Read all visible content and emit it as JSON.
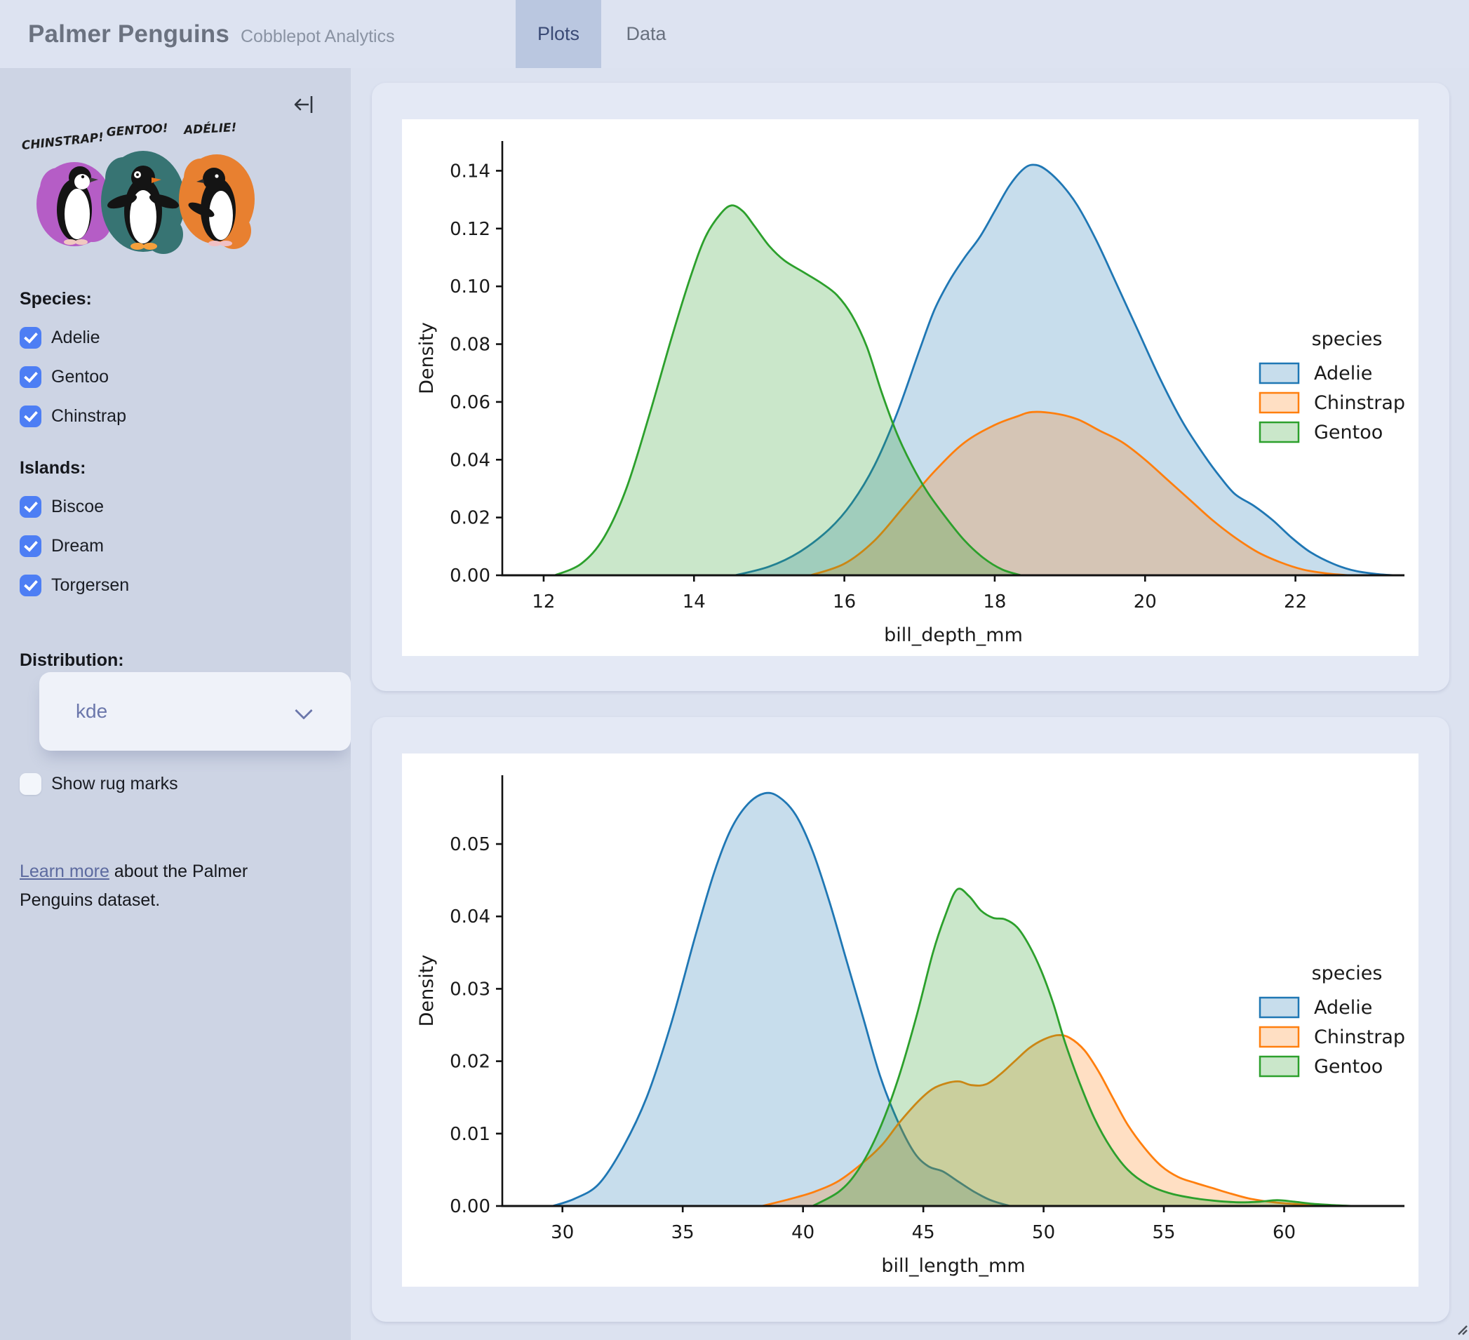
{
  "header": {
    "title": "Palmer Penguins",
    "subtitle": "Cobblepot Analytics",
    "tabs": [
      {
        "label": "Plots",
        "active": true
      },
      {
        "label": "Data",
        "active": false
      }
    ]
  },
  "sidebar": {
    "artwork_labels": [
      "CHINSTRAP!",
      "GENTOO!",
      "ADÉLIE!"
    ],
    "species": {
      "heading": "Species:",
      "options": [
        {
          "label": "Adelie",
          "checked": true
        },
        {
          "label": "Gentoo",
          "checked": true
        },
        {
          "label": "Chinstrap",
          "checked": true
        }
      ]
    },
    "islands": {
      "heading": "Islands:",
      "options": [
        {
          "label": "Biscoe",
          "checked": true
        },
        {
          "label": "Dream",
          "checked": true
        },
        {
          "label": "Torgersen",
          "checked": true
        }
      ]
    },
    "distribution": {
      "heading": "Distribution:",
      "selected": "kde"
    },
    "rug": {
      "label": "Show rug marks",
      "checked": false
    },
    "learn_more": {
      "link_text": "Learn more",
      "rest": " about the Palmer Penguins dataset."
    }
  },
  "colors": {
    "accent_checkbox": "#4d7ef4",
    "link": "#5c6a9f",
    "active_tab_bg": "#bac7e0",
    "adelie": "#1f77b4",
    "chinstrap": "#ff7f0e",
    "gentoo": "#2ca02c"
  },
  "chart_data": [
    {
      "type": "area",
      "kind": "kde",
      "xlabel": "bill_depth_mm",
      "ylabel": "Density",
      "xlim": [
        11.45,
        23.45
      ],
      "ylim": [
        0,
        0.1503
      ],
      "xticks": [
        12,
        14,
        16,
        18,
        20,
        22
      ],
      "yticks": [
        0,
        0.02,
        0.04,
        0.06,
        0.08,
        0.1,
        0.12,
        0.14
      ],
      "ytick_labels": [
        "0.00",
        "0.02",
        "0.04",
        "0.06",
        "0.08",
        "0.10",
        "0.12",
        "0.14"
      ],
      "legend": {
        "title": "species",
        "entries": [
          "Adelie",
          "Chinstrap",
          "Gentoo"
        ],
        "position": "center right"
      },
      "grid": false,
      "series": [
        {
          "name": "Adelie",
          "color": "#1f77b4",
          "points": [
            [
              14.55,
              0
            ],
            [
              15.0,
              0.003
            ],
            [
              15.4,
              0.008
            ],
            [
              15.8,
              0.016
            ],
            [
              16.1,
              0.025
            ],
            [
              16.4,
              0.038
            ],
            [
              16.7,
              0.056
            ],
            [
              17.0,
              0.078
            ],
            [
              17.2,
              0.092
            ],
            [
              17.4,
              0.102
            ],
            [
              17.6,
              0.11
            ],
            [
              17.8,
              0.117
            ],
            [
              18.0,
              0.126
            ],
            [
              18.2,
              0.135
            ],
            [
              18.4,
              0.141
            ],
            [
              18.55,
              0.142
            ],
            [
              18.7,
              0.14
            ],
            [
              18.9,
              0.135
            ],
            [
              19.1,
              0.128
            ],
            [
              19.35,
              0.116
            ],
            [
              19.6,
              0.102
            ],
            [
              19.9,
              0.085
            ],
            [
              20.2,
              0.068
            ],
            [
              20.5,
              0.053
            ],
            [
              20.8,
              0.041
            ],
            [
              21.0,
              0.034
            ],
            [
              21.2,
              0.028
            ],
            [
              21.45,
              0.024
            ],
            [
              21.7,
              0.019
            ],
            [
              21.95,
              0.013
            ],
            [
              22.2,
              0.008
            ],
            [
              22.5,
              0.004
            ],
            [
              22.8,
              0.0015
            ],
            [
              23.1,
              0.0004
            ],
            [
              23.3,
              0
            ]
          ]
        },
        {
          "name": "Chinstrap",
          "color": "#ff7f0e",
          "points": [
            [
              15.55,
              0
            ],
            [
              16.0,
              0.004
            ],
            [
              16.4,
              0.012
            ],
            [
              16.8,
              0.024
            ],
            [
              17.2,
              0.036
            ],
            [
              17.6,
              0.046
            ],
            [
              18.0,
              0.052
            ],
            [
              18.3,
              0.055
            ],
            [
              18.5,
              0.0565
            ],
            [
              18.8,
              0.056
            ],
            [
              19.1,
              0.054
            ],
            [
              19.4,
              0.05
            ],
            [
              19.7,
              0.046
            ],
            [
              20.0,
              0.04
            ],
            [
              20.3,
              0.033
            ],
            [
              20.6,
              0.026
            ],
            [
              20.9,
              0.019
            ],
            [
              21.2,
              0.013
            ],
            [
              21.5,
              0.008
            ],
            [
              21.8,
              0.0045
            ],
            [
              22.1,
              0.002
            ],
            [
              22.4,
              0.0007
            ],
            [
              22.7,
              0
            ]
          ]
        },
        {
          "name": "Gentoo",
          "color": "#2ca02c",
          "points": [
            [
              12.15,
              0
            ],
            [
              12.5,
              0.004
            ],
            [
              12.8,
              0.013
            ],
            [
              13.1,
              0.03
            ],
            [
              13.4,
              0.055
            ],
            [
              13.7,
              0.082
            ],
            [
              13.95,
              0.103
            ],
            [
              14.15,
              0.117
            ],
            [
              14.35,
              0.125
            ],
            [
              14.5,
              0.128
            ],
            [
              14.65,
              0.126
            ],
            [
              14.8,
              0.121
            ],
            [
              15.0,
              0.114
            ],
            [
              15.2,
              0.109
            ],
            [
              15.45,
              0.105
            ],
            [
              15.7,
              0.101
            ],
            [
              15.9,
              0.097
            ],
            [
              16.1,
              0.09
            ],
            [
              16.3,
              0.079
            ],
            [
              16.5,
              0.063
            ],
            [
              16.7,
              0.049
            ],
            [
              16.9,
              0.038
            ],
            [
              17.1,
              0.029
            ],
            [
              17.35,
              0.02
            ],
            [
              17.6,
              0.012
            ],
            [
              17.85,
              0.006
            ],
            [
              18.1,
              0.002
            ],
            [
              18.35,
              0
            ]
          ]
        }
      ]
    },
    {
      "type": "area",
      "kind": "kde",
      "xlabel": "bill_length_mm",
      "ylabel": "Density",
      "xlim": [
        27.5,
        65.0
      ],
      "ylim": [
        0,
        0.0595
      ],
      "xticks": [
        30,
        35,
        40,
        45,
        50,
        55,
        60
      ],
      "yticks": [
        0,
        0.01,
        0.02,
        0.03,
        0.04,
        0.05
      ],
      "ytick_labels": [
        "0.00",
        "0.01",
        "0.02",
        "0.03",
        "0.04",
        "0.05"
      ],
      "legend": {
        "title": "species",
        "entries": [
          "Adelie",
          "Chinstrap",
          "Gentoo"
        ],
        "position": "center right"
      },
      "grid": false,
      "series": [
        {
          "name": "Adelie",
          "color": "#1f77b4",
          "points": [
            [
              29.6,
              0
            ],
            [
              30.5,
              0.001
            ],
            [
              31.5,
              0.003
            ],
            [
              32.5,
              0.008
            ],
            [
              33.5,
              0.015
            ],
            [
              34.5,
              0.025
            ],
            [
              35.5,
              0.037
            ],
            [
              36.3,
              0.046
            ],
            [
              37.0,
              0.052
            ],
            [
              37.7,
              0.0555
            ],
            [
              38.4,
              0.057
            ],
            [
              39.0,
              0.0565
            ],
            [
              39.7,
              0.054
            ],
            [
              40.4,
              0.049
            ],
            [
              41.1,
              0.042
            ],
            [
              41.8,
              0.034
            ],
            [
              42.5,
              0.026
            ],
            [
              43.2,
              0.018
            ],
            [
              43.9,
              0.012
            ],
            [
              44.6,
              0.0075
            ],
            [
              45.2,
              0.0055
            ],
            [
              45.8,
              0.0048
            ],
            [
              46.4,
              0.0035
            ],
            [
              47.1,
              0.002
            ],
            [
              47.8,
              0.0008
            ],
            [
              48.6,
              0
            ]
          ]
        },
        {
          "name": "Chinstrap",
          "color": "#ff7f0e",
          "points": [
            [
              38.3,
              0
            ],
            [
              39.5,
              0.001
            ],
            [
              40.5,
              0.002
            ],
            [
              41.5,
              0.0035
            ],
            [
              42.5,
              0.006
            ],
            [
              43.3,
              0.0085
            ],
            [
              44.0,
              0.0115
            ],
            [
              44.8,
              0.0145
            ],
            [
              45.4,
              0.0162
            ],
            [
              46.0,
              0.017
            ],
            [
              46.5,
              0.0172
            ],
            [
              47.0,
              0.0167
            ],
            [
              47.6,
              0.0168
            ],
            [
              48.2,
              0.0182
            ],
            [
              48.8,
              0.02
            ],
            [
              49.4,
              0.0218
            ],
            [
              50.0,
              0.023
            ],
            [
              50.6,
              0.0236
            ],
            [
              51.1,
              0.0232
            ],
            [
              51.7,
              0.0215
            ],
            [
              52.3,
              0.0185
            ],
            [
              52.9,
              0.0148
            ],
            [
              53.5,
              0.0112
            ],
            [
              54.2,
              0.008
            ],
            [
              54.9,
              0.0055
            ],
            [
              55.6,
              0.004
            ],
            [
              56.3,
              0.0032
            ],
            [
              57.0,
              0.0025
            ],
            [
              57.8,
              0.0017
            ],
            [
              58.6,
              0.001
            ],
            [
              59.6,
              0.0005
            ],
            [
              60.8,
              0.0002
            ],
            [
              62.0,
              0
            ]
          ]
        },
        {
          "name": "Gentoo",
          "color": "#2ca02c",
          "points": [
            [
              40.4,
              0
            ],
            [
              41.5,
              0.002
            ],
            [
              42.3,
              0.005
            ],
            [
              43.1,
              0.01
            ],
            [
              43.9,
              0.017
            ],
            [
              44.7,
              0.026
            ],
            [
              45.4,
              0.035
            ],
            [
              45.9,
              0.04
            ],
            [
              46.4,
              0.0437
            ],
            [
              46.9,
              0.0428
            ],
            [
              47.4,
              0.0408
            ],
            [
              47.9,
              0.0398
            ],
            [
              48.4,
              0.0396
            ],
            [
              48.9,
              0.0385
            ],
            [
              49.4,
              0.036
            ],
            [
              49.9,
              0.0325
            ],
            [
              50.4,
              0.028
            ],
            [
              50.9,
              0.0225
            ],
            [
              51.5,
              0.017
            ],
            [
              52.1,
              0.0122
            ],
            [
              52.8,
              0.008
            ],
            [
              53.5,
              0.005
            ],
            [
              54.3,
              0.003
            ],
            [
              55.2,
              0.0018
            ],
            [
              56.2,
              0.0011
            ],
            [
              57.2,
              0.0007
            ],
            [
              58.2,
              0.0005
            ],
            [
              59.0,
              0.0006
            ],
            [
              59.7,
              0.0008
            ],
            [
              60.4,
              0.0006
            ],
            [
              61.2,
              0.0003
            ],
            [
              62.2,
              0.0001
            ],
            [
              62.9,
              0
            ]
          ]
        }
      ]
    }
  ]
}
